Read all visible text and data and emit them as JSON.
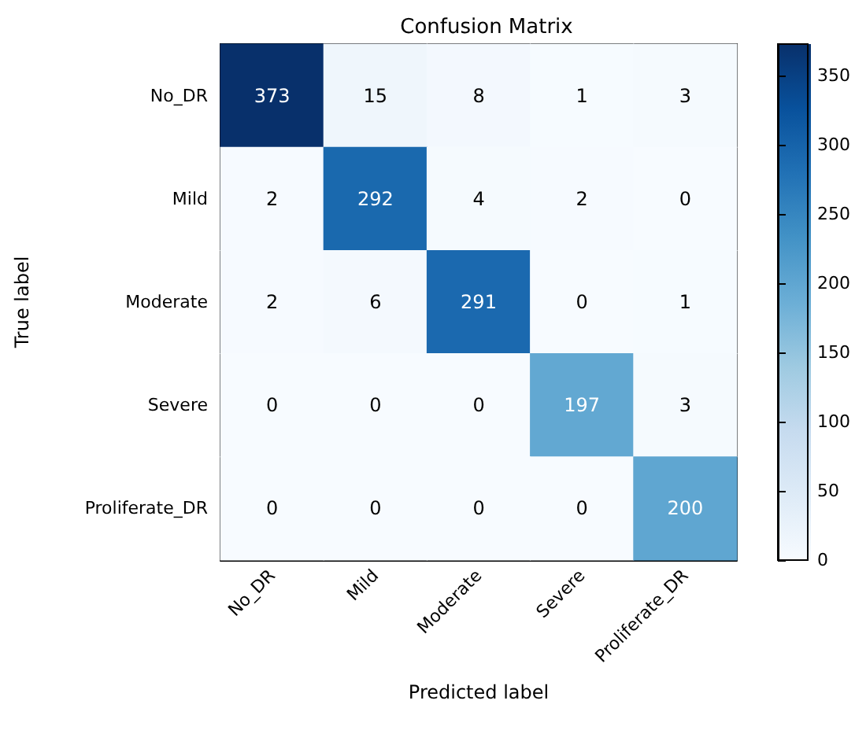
{
  "chart_data": {
    "type": "heatmap",
    "title": "Confusion Matrix",
    "xlabel": "Predicted label",
    "ylabel": "True label",
    "categories": [
      "No_DR",
      "Mild",
      "Moderate",
      "Severe",
      "Proliferate_DR"
    ],
    "y_categories": [
      "No_DR",
      "Mild",
      "Moderate",
      "Severe",
      "Proliferate_DR"
    ],
    "cells": [
      [
        373,
        15,
        8,
        1,
        3
      ],
      [
        2,
        292,
        4,
        2,
        0
      ],
      [
        2,
        6,
        291,
        0,
        1
      ],
      [
        0,
        0,
        0,
        197,
        3
      ],
      [
        0,
        0,
        0,
        0,
        200
      ]
    ],
    "clim": [
      0,
      373
    ],
    "cticks": [
      0,
      50,
      100,
      150,
      200,
      250,
      300,
      350
    ],
    "data_labels": true
  }
}
